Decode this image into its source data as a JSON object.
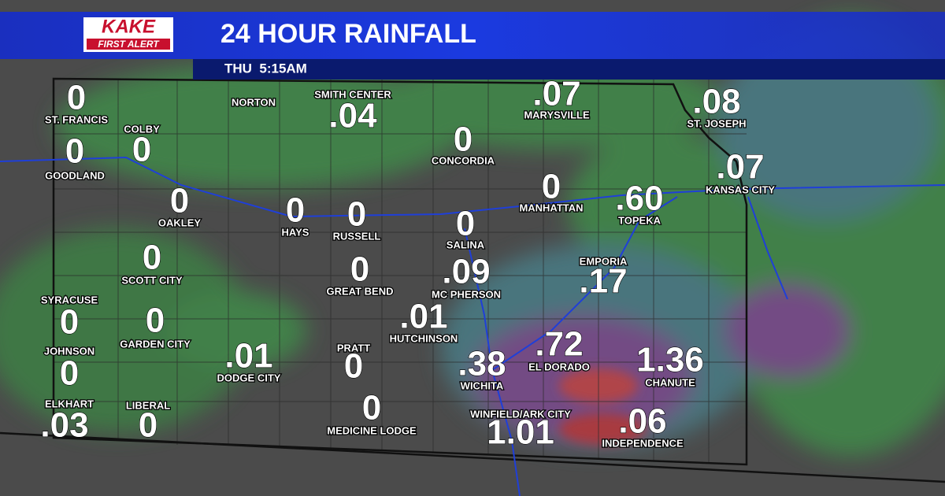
{
  "header": {
    "logo_top": "KAKE",
    "logo_bottom": "FIRST ALERT",
    "title": "24 HOUR RAINFALL",
    "timestamp": "THU  5:15AM"
  },
  "cities": [
    {
      "name": "ST. FRANCIS",
      "amount": "0"
    },
    {
      "name": "COLBY",
      "amount": "0"
    },
    {
      "name": "GOODLAND",
      "amount": "0"
    },
    {
      "name": "OAKLEY",
      "amount": "0"
    },
    {
      "name": "NORTON"
    },
    {
      "name": "SMITH CENTER",
      "amount": ".04"
    },
    {
      "name": "HAYS",
      "amount": "0"
    },
    {
      "name": "RUSSELL",
      "amount": "0"
    },
    {
      "name": "CONCORDIA",
      "amount": "0"
    },
    {
      "name": "MARYSVILLE",
      "amount": ".07"
    },
    {
      "name": "ST. JOSEPH",
      "amount": ".08"
    },
    {
      "name": "KANSAS CITY",
      "amount": ".07"
    },
    {
      "name": "MANHATTAN",
      "amount": "0"
    },
    {
      "name": "TOPEKA",
      "amount": ".60"
    },
    {
      "name": "SALINA",
      "amount": "0"
    },
    {
      "name": "SCOTT CITY",
      "amount": "0"
    },
    {
      "name": "SYRACUSE",
      "amount": "0"
    },
    {
      "name": "JOHNSON",
      "amount": "0"
    },
    {
      "name": "ELKHART",
      "amount": ".03"
    },
    {
      "name": "GARDEN CITY",
      "amount": "0"
    },
    {
      "name": "LIBERAL",
      "amount": "0"
    },
    {
      "name": "GREAT BEND",
      "amount": "0"
    },
    {
      "name": "MC PHERSON",
      "amount": ".09"
    },
    {
      "name": "EMPORIA",
      "amount": ".17"
    },
    {
      "name": "HUTCHINSON",
      "amount": ".01"
    },
    {
      "name": "DODGE CITY",
      "amount": ".01"
    },
    {
      "name": "PRATT",
      "amount": "0"
    },
    {
      "name": "WICHITA",
      "amount": ".38"
    },
    {
      "name": "EL DORADO",
      "amount": ".72"
    },
    {
      "name": "CHANUTE",
      "amount": "1.36"
    },
    {
      "name": "MEDICINE LODGE",
      "amount": "0"
    },
    {
      "name": "WINFIELD/ARK CITY",
      "amount": "1.01"
    },
    {
      "name": "INDEPENDENCE",
      "amount": ".06"
    }
  ]
}
